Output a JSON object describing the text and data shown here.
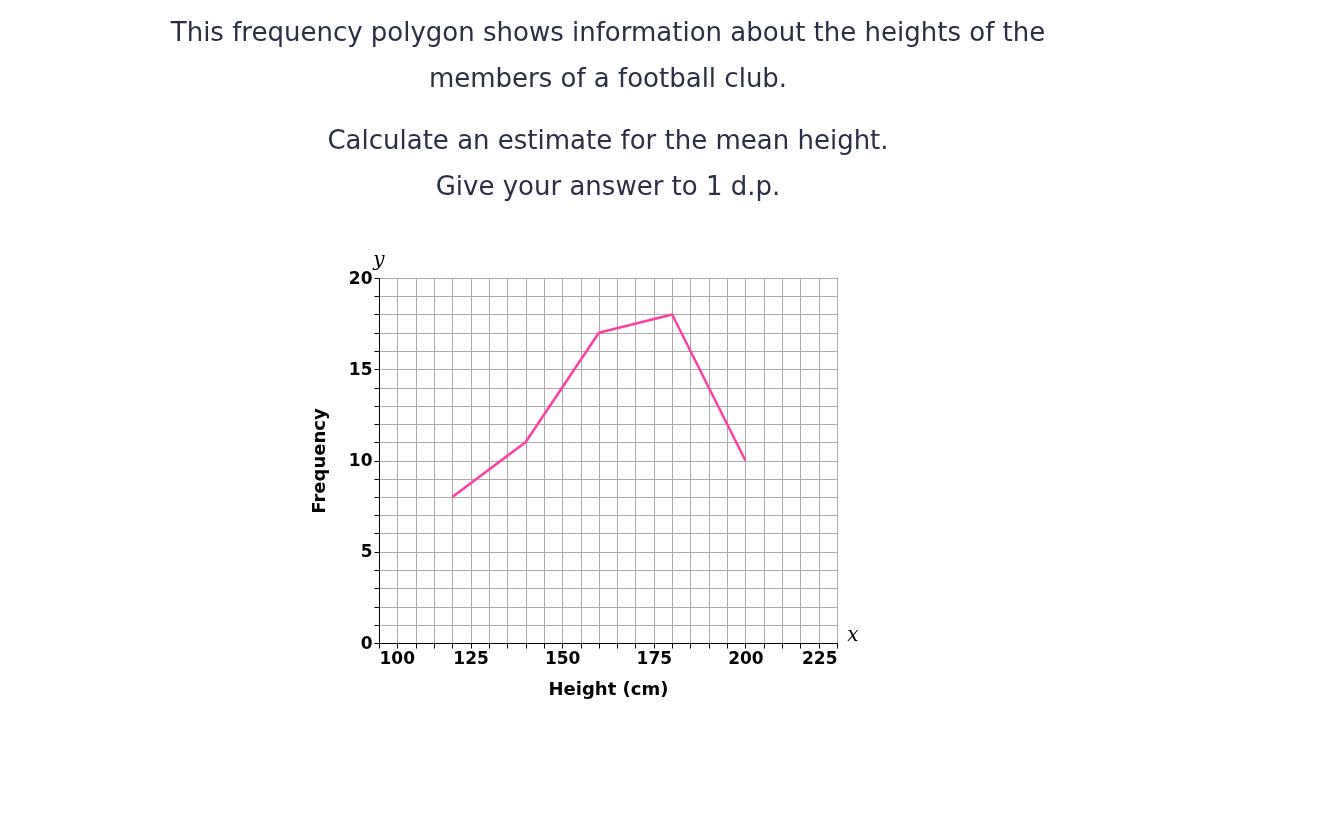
{
  "chart_data": {
    "type": "line",
    "title": "This frequency polygon shows information about the heights of the members of a football club.",
    "subtitle": "Calculate an estimate for the mean height. Give your answer to 1 d.p.",
    "xlabel": "Height (cm)",
    "ylabel": "Frequency",
    "x": [
      120,
      140,
      160,
      180,
      200
    ],
    "series": [
      {
        "color": "#ff3ea5",
        "values": [
          8,
          11,
          17,
          18,
          10
        ]
      }
    ],
    "xlim": [
      100,
      225
    ],
    "ylim": [
      0,
      20
    ],
    "xticks": [
      100,
      {
        "value": 105,
        "label": null
      },
      {
        "value": 110,
        "label": null
      },
      {
        "value": 115,
        "label": null
      },
      {
        "value": 120,
        "label": null
      },
      125,
      {
        "value": 130,
        "label": null
      },
      {
        "value": 135,
        "label": null
      },
      {
        "value": 140,
        "label": null
      },
      {
        "value": 145,
        "label": null
      },
      150,
      {
        "value": 155,
        "label": null
      },
      {
        "value": 160,
        "label": null
      },
      {
        "value": 165,
        "label": null
      },
      {
        "value": 170,
        "label": null
      },
      175,
      {
        "value": 180,
        "label": null
      },
      {
        "value": 185,
        "label": null
      },
      {
        "value": 190,
        "label": null
      },
      {
        "value": 195,
        "label": null
      },
      200,
      {
        "value": 205,
        "label": null
      },
      {
        "value": 210,
        "label": null
      },
      {
        "value": 215,
        "label": null
      },
      {
        "value": 220,
        "label": null
      },
      225
    ],
    "yticks": [
      0,
      {
        "value": 1,
        "label": null
      },
      {
        "value": 2,
        "label": null
      },
      {
        "value": 3,
        "label": null
      },
      {
        "value": 4,
        "label": null
      },
      5,
      {
        "value": 6,
        "label": null
      },
      {
        "value": 7,
        "label": null
      },
      {
        "value": 8,
        "label": null
      },
      {
        "value": 9,
        "label": null
      },
      10,
      {
        "value": 11,
        "label": null
      },
      {
        "value": 12,
        "label": null
      },
      {
        "value": 13,
        "label": null
      },
      {
        "value": 14,
        "label": null
      },
      15,
      {
        "value": 16,
        "label": null
      },
      {
        "value": 17,
        "label": null
      },
      {
        "value": 18,
        "label": null
      },
      {
        "value": 19,
        "label": null
      },
      20
    ],
    "grid": true,
    "marker": "none",
    "line_style": "solid",
    "annotations": [
      "x",
      "y"
    ]
  }
}
